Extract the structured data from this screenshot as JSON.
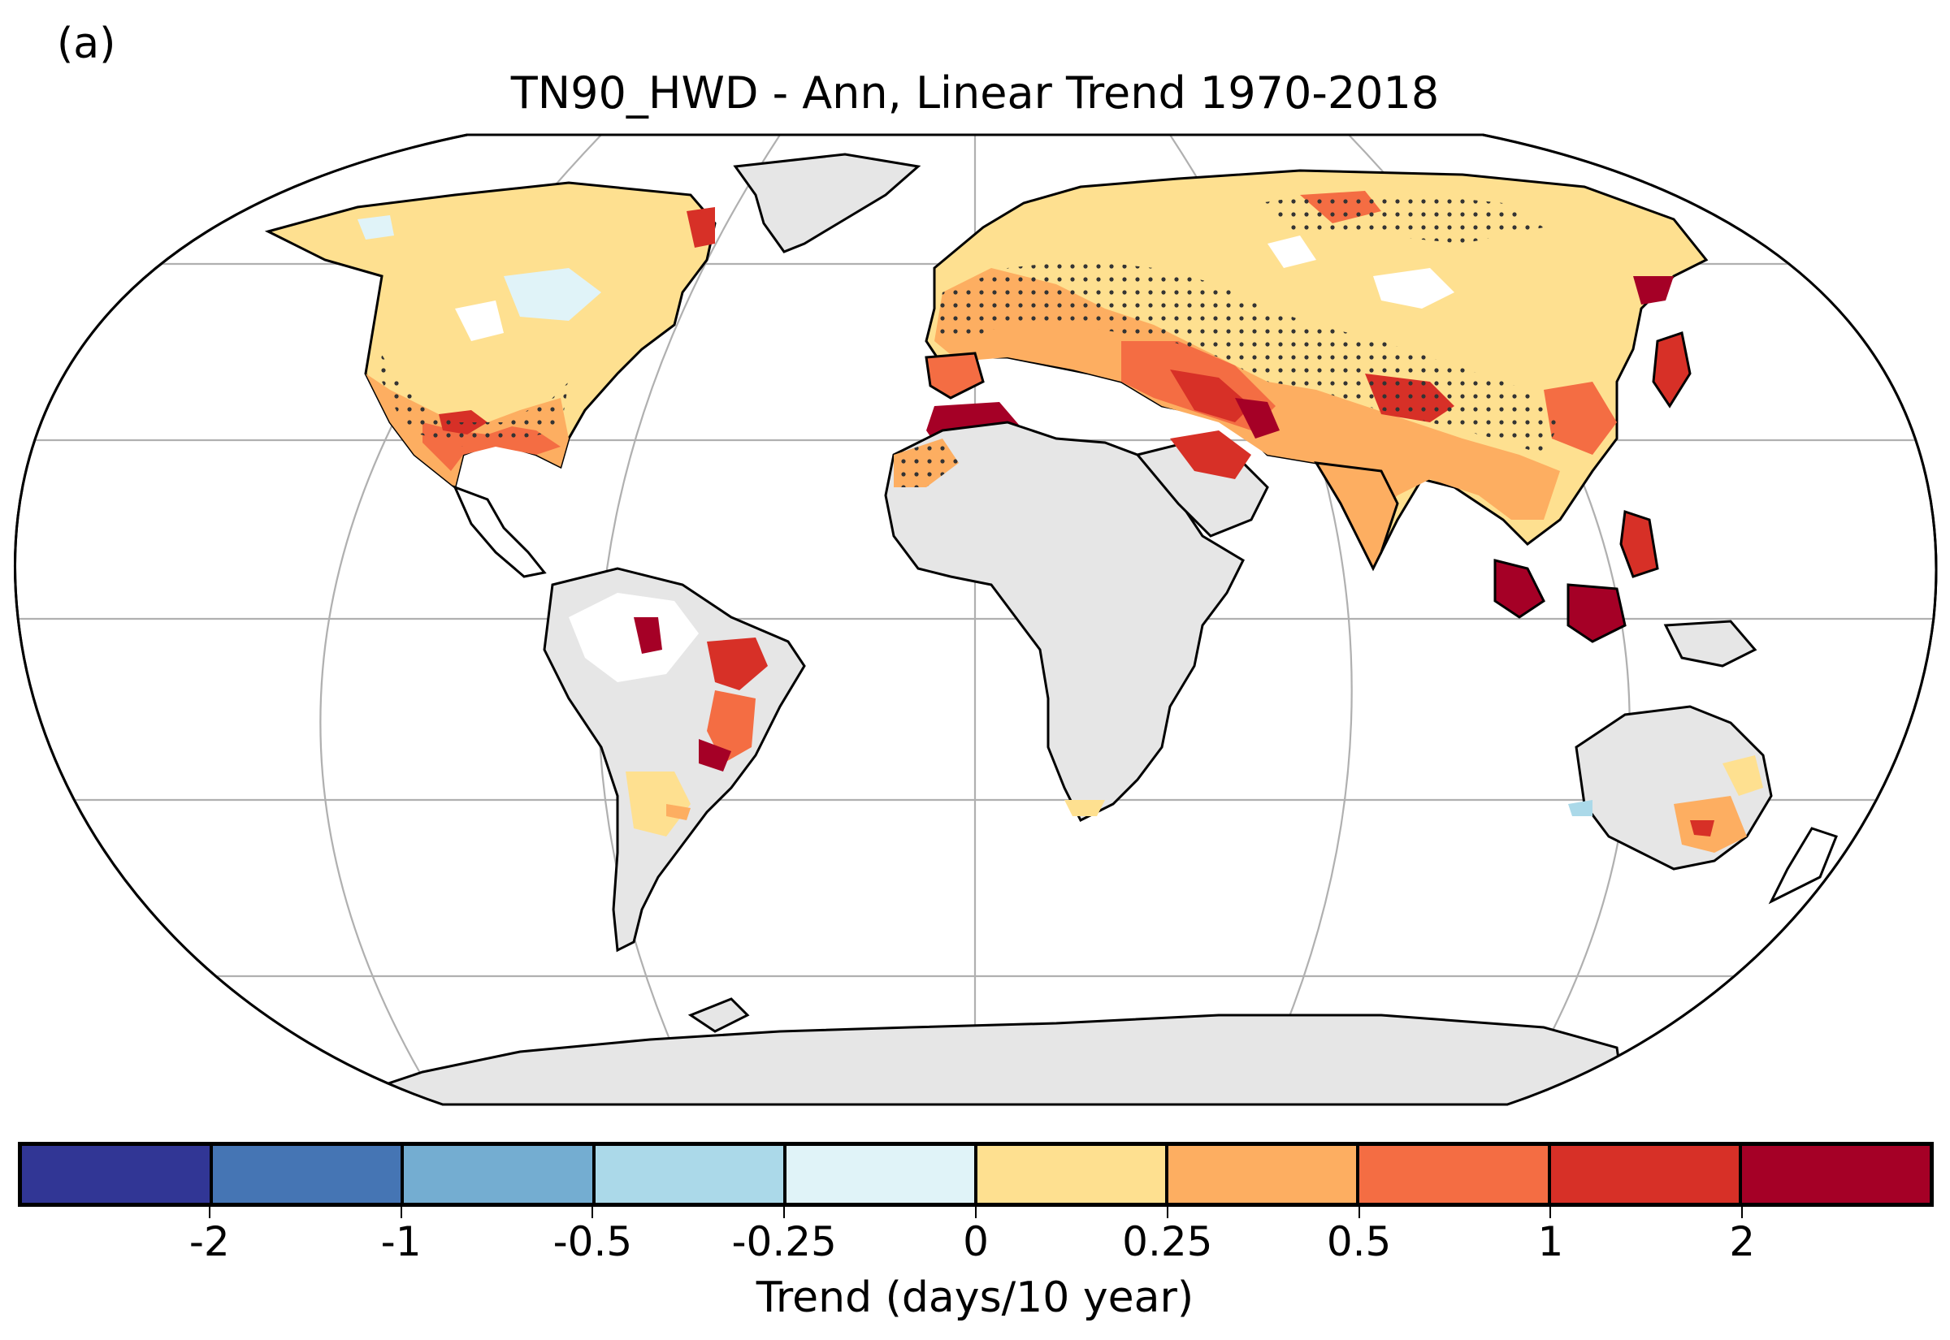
{
  "panel_label": "(a)",
  "title": "TN90_HWD - Ann, Linear Trend 1970-2018",
  "colorbar": {
    "label": "Trend (days/10 year)",
    "ticks": [
      "-2",
      "-1",
      "-0.5",
      "-0.25",
      "0",
      "0.25",
      "0.5",
      "1",
      "2"
    ],
    "colors": [
      "#313695",
      "#4575b4",
      "#74add1",
      "#abd9e9",
      "#e0f3f8",
      "#fee090",
      "#fdae61",
      "#f46d43",
      "#d73027",
      "#a50026"
    ]
  },
  "map": {
    "projection": "robinson",
    "land_no_data_color": "#e6e6e6",
    "gridline_color": "#b0b0b0",
    "stippling": "dots where trend is significant"
  }
}
